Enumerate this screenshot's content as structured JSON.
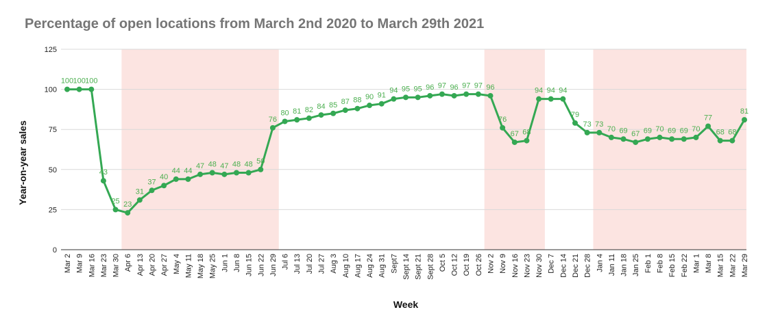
{
  "chart_data": {
    "type": "line",
    "title": "Percentage of open locations from March 2nd 2020 to March 29th 2021",
    "xlabel": "Week",
    "ylabel": "Year-on-year sales",
    "ylim": [
      0,
      125
    ],
    "yticks": [
      0,
      25,
      50,
      75,
      100,
      125
    ],
    "grid": true,
    "legend": "none",
    "colors": {
      "line": "#34a853",
      "marker": "#34a853",
      "label": "#4caf50",
      "band": "#fce4e1",
      "grid": "#d9d9d9"
    },
    "categories": [
      "Mar 2",
      "Mar 9",
      "Mar 16",
      "Mar 23",
      "Mar 30",
      "Apr 6",
      "Apr 13",
      "Apr 20",
      "Apr 27",
      "May 4",
      "May 11",
      "May 18",
      "May 25",
      "Jun 1",
      "Jun 8",
      "Jun 15",
      "Jun 22",
      "Jun 29",
      "Jul 6",
      "Jul 13",
      "Jul 20",
      "Jul 27",
      "Aug 3",
      "Aug 10",
      "Aug 17",
      "Aug 24",
      "Aug 31",
      "Sept 7",
      "Sept 14",
      "Sept 21",
      "Sept 28",
      "Oct 5",
      "Oct 12",
      "Oct 19",
      "Oct 26",
      "Nov 2",
      "Nov 9",
      "Nov 16",
      "Nov 23",
      "Nov 30",
      "Dec 7",
      "Dec 14",
      "Dec 21",
      "Dec 28",
      "Jan 4",
      "Jan 11",
      "Jan 18",
      "Jan 25",
      "Feb 1",
      "Feb 8",
      "Feb 15",
      "Feb 22",
      "Mar 1",
      "Mar 8",
      "Mar 15",
      "Mar 22",
      "Mar 29"
    ],
    "tick_labels": [
      "Mar 2",
      "Mar 9",
      "Mar 16",
      "Mar 23",
      "Mar 30",
      "Apr 6",
      "Apr 13",
      "Apr 20",
      "Apr 27",
      "May 4",
      "May 11",
      "May 18",
      "May 25",
      "Jun 1",
      "Jun 8",
      "Jun 15",
      "Jun 22",
      "Jun 29",
      "Jul 6",
      "Jul 13",
      "Jul 20",
      "Jul 27",
      "Aug 3",
      "Aug 10",
      "Aug 17",
      "Aug 24",
      "Aug 31",
      "Sept7",
      "Sept 14",
      "Sept 21",
      "Sept 28",
      "Oct 5",
      "Oct 12",
      "Oct 19",
      "Oct 26",
      "Nov 2",
      "Nov 9",
      "Nov 16",
      "Nov 23",
      "Nov 30",
      "Dec 7",
      "Dec 14",
      "Dec 21",
      "Dec 28",
      "Jan 4",
      "Jan 11",
      "Jan 18",
      "Jan 25",
      "Feb 1",
      "Feb 8",
      "Feb 15",
      "Feb 22",
      "Mar 1",
      "Mar 8",
      "Mar 15",
      "Mar 22",
      "Mar 29"
    ],
    "series": [
      {
        "values": [
          100,
          100,
          100,
          43,
          25,
          23,
          31,
          37,
          40,
          44,
          44,
          47,
          48,
          47,
          48,
          48,
          50,
          76,
          80,
          81,
          82,
          84,
          85,
          87,
          88,
          90,
          91,
          94,
          95,
          95,
          96,
          97,
          96,
          97,
          97,
          96,
          76,
          67,
          68,
          94,
          94,
          94,
          79,
          73,
          73,
          70,
          69,
          67,
          69,
          70,
          69,
          69,
          70,
          77,
          68,
          68,
          81
        ]
      }
    ],
    "shaded_ranges": [
      {
        "start": "Apr 6",
        "end": "Jun 29"
      },
      {
        "start": "Nov 2",
        "end": "Nov 30"
      },
      {
        "start": "Jan 4",
        "end": "Mar 29"
      }
    ]
  }
}
